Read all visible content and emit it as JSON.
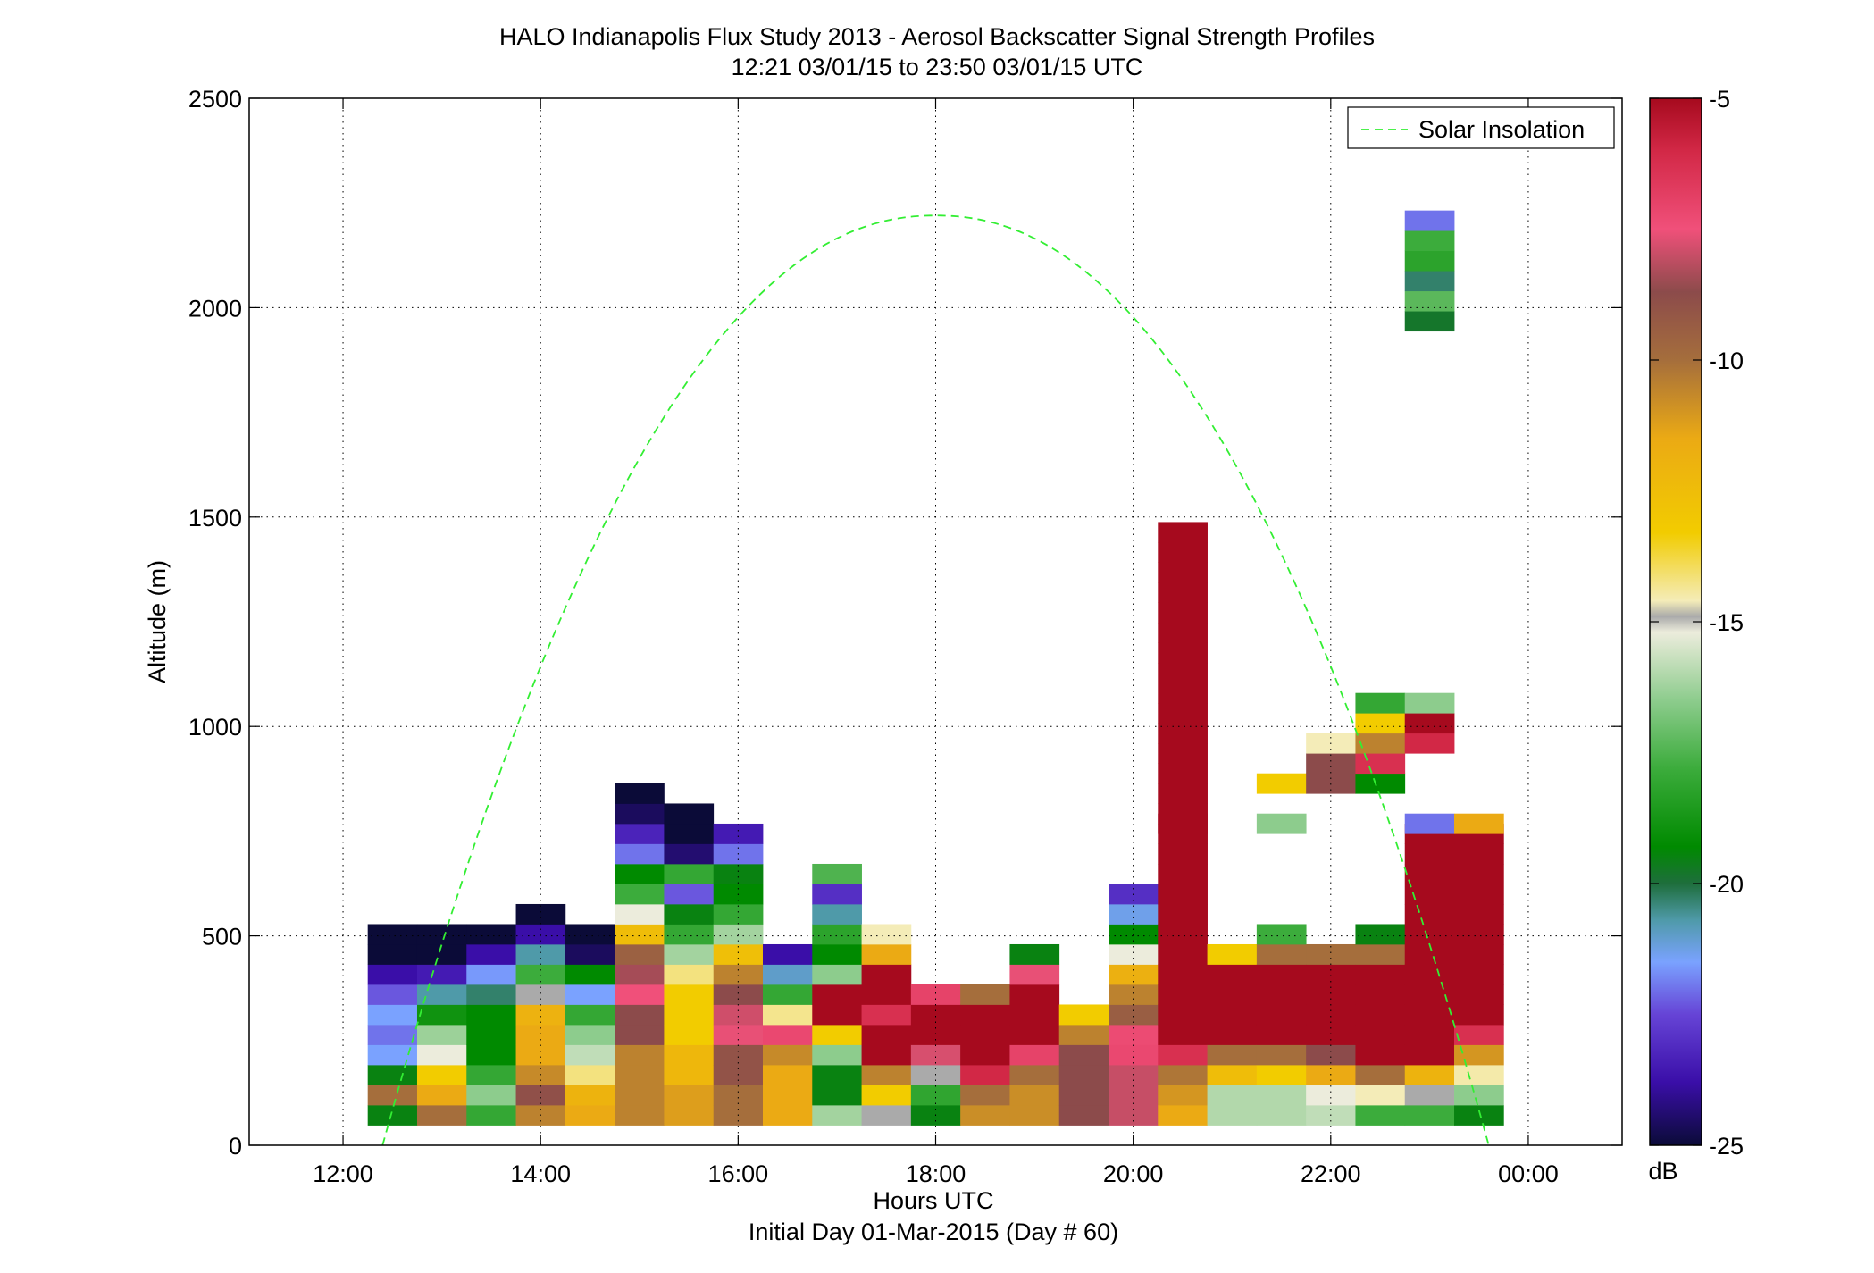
{
  "chart_data": {
    "type": "heatmap",
    "title": "HALO Indianapolis Flux Study 2013 - Aerosol Backscatter Signal Strength Profiles",
    "subtitle": "12:21 03/01/15 to 23:50 03/01/15  UTC",
    "xlabel": "Hours UTC",
    "xlabel2": "Initial Day 01-Mar-2015 (Day # 60)",
    "ylabel": "Altitude (m)",
    "xlim": [
      11.05,
      24.95
    ],
    "ylim": [
      0,
      2500
    ],
    "xticks": [
      12,
      14,
      16,
      18,
      20,
      22,
      24
    ],
    "xtick_labels": [
      "12:00",
      "14:00",
      "16:00",
      "18:00",
      "20:00",
      "22:00",
      "00:00"
    ],
    "yticks": [
      0,
      500,
      1000,
      1500,
      2000,
      2500
    ],
    "ytick_labels": [
      "0",
      "500",
      "1000",
      "1500",
      "2000",
      "2500"
    ],
    "grid": true,
    "legend": {
      "position": "top-right",
      "entries": [
        {
          "name": "Solar Insolation",
          "style": "dashed",
          "color": "#33ee33"
        }
      ]
    },
    "colorbar": {
      "label": "dB",
      "range": [
        -25,
        -5
      ],
      "ticks": [
        -5,
        -10,
        -15,
        -20,
        -25
      ],
      "tick_labels": [
        "-5",
        "-10",
        "-15",
        "-20",
        "-25"
      ],
      "stops": [
        {
          "v": -25,
          "color": "#0b0b38"
        },
        {
          "v": -23.8,
          "color": "#3a0ea8"
        },
        {
          "v": -22.5,
          "color": "#6644d6"
        },
        {
          "v": -21.5,
          "color": "#7aa2ff"
        },
        {
          "v": -20.7,
          "color": "#4f9aa9"
        },
        {
          "v": -20.0,
          "color": "#1e6e3c"
        },
        {
          "v": -19.3,
          "color": "#008a00"
        },
        {
          "v": -17.8,
          "color": "#3cac3c"
        },
        {
          "v": -16.5,
          "color": "#8dcc8d"
        },
        {
          "v": -15.2,
          "color": "#ececdc"
        },
        {
          "v": -14.9,
          "color": "#aaaaaa"
        },
        {
          "v": -14.6,
          "color": "#f4ecb8"
        },
        {
          "v": -13.3,
          "color": "#f2cc00"
        },
        {
          "v": -11.5,
          "color": "#ebaa14"
        },
        {
          "v": -10.0,
          "color": "#a56e3c"
        },
        {
          "v": -8.7,
          "color": "#8c4b4b"
        },
        {
          "v": -7.5,
          "color": "#f0507a"
        },
        {
          "v": -6.0,
          "color": "#d22846"
        },
        {
          "v": -5,
          "color": "#a60a1e"
        }
      ]
    },
    "bin_width_hours": 0.5,
    "bin_height_m": 48,
    "solar_insolation": {
      "start": 12.4,
      "peak_x": 18.0,
      "peak_y": 2220,
      "end": 23.6
    },
    "cells": [
      {
        "x": 12.5,
        "y0": 48,
        "v": [
          -19.5,
          -10.0,
          -19.5,
          -21.5,
          -22.0,
          -21.5,
          -22.3,
          -23.8,
          -25,
          -25
        ]
      },
      {
        "x": 13.0,
        "y0": 48,
        "v": [
          -10.0,
          -11.5,
          -13.3,
          -15.2,
          -16.3,
          -18.9,
          -20.7,
          -23.5,
          -25,
          -25
        ]
      },
      {
        "x": 13.5,
        "y0": 48,
        "v": [
          -18.0,
          -16.5,
          -18.0,
          -19.3,
          -19.3,
          -19.3,
          -20.3,
          -21.6,
          -23.8,
          -25
        ]
      },
      {
        "x": 14.0,
        "y0": 48,
        "v": [
          -10.5,
          -8.9,
          -10.7,
          -11.5,
          -11.5,
          -11.9,
          -14.9,
          -17.8,
          -20.7,
          -23.8,
          -25
        ]
      },
      {
        "x": 14.5,
        "y0": 48,
        "v": [
          -11.5,
          -12.0,
          -14.2,
          -15.8,
          -16.5,
          -18.0,
          -21.5,
          -19.3,
          -24.6,
          -25
        ]
      },
      {
        "x": 15.0,
        "y0": 48,
        "v": [
          -10.5,
          -10.5,
          -10.5,
          -10.5,
          -8.7,
          -8.7,
          -7.5,
          -8.4,
          -9.5,
          -12.5,
          -15.2,
          -17.8,
          -19.3,
          -22.0,
          -23.3,
          -24.6,
          -25
        ]
      },
      {
        "x": 15.5,
        "y0": 48,
        "v": [
          -11.2,
          -11.2,
          -12.2,
          -12.2,
          -13.3,
          -13.3,
          -13.3,
          -14.2,
          -16.2,
          -18.0,
          -19.5,
          -22.3,
          -18.0,
          -24.4,
          -25,
          -25
        ]
      },
      {
        "x": 16.0,
        "y0": 48,
        "v": [
          -10.0,
          -10.0,
          -9.0,
          -9.0,
          -7.6,
          -7.9,
          -8.7,
          -10.5,
          -12.6,
          -16.2,
          -18.0,
          -19.3,
          -19.5,
          -22.0,
          -23.5
        ]
      },
      {
        "x": 16.5,
        "y0": 48,
        "v": [
          -11.5,
          -11.5,
          -11.5,
          -10.7,
          -7.2,
          -14.3,
          -18.0,
          -21.0,
          -23.8
        ]
      },
      {
        "x": 17.0,
        "y0": 48,
        "v": [
          -16.2,
          -19.5,
          -19.5,
          -16.5,
          -13.3,
          -5,
          -5,
          -16.5,
          -19.3,
          -18.2,
          -20.7,
          -23.0,
          -17.5
        ]
      },
      {
        "x": 17.5,
        "y0": 48,
        "v": [
          -14.9,
          -13.3,
          -10.5,
          -5,
          -5,
          -6.3,
          -5,
          -5,
          -11.5,
          -14.6
        ]
      },
      {
        "x": 18.0,
        "y0": 48,
        "v": [
          -19.5,
          -18.1,
          -14.9,
          -7.8,
          -5,
          -5,
          -7.0
        ]
      },
      {
        "x": 18.5,
        "y0": 48,
        "v": [
          -10.8,
          -10.0,
          -6.0,
          -5,
          -5,
          -5,
          -10.0
        ]
      },
      {
        "x": 19.0,
        "y0": 48,
        "v": [
          -10.8,
          -10.8,
          -10.0,
          -7.0,
          -5,
          -5,
          -5,
          -7.6,
          -19.5
        ]
      },
      {
        "x": 19.5,
        "y0": 48,
        "v": [
          -8.7,
          -8.7,
          -8.7,
          -8.7,
          -10.5,
          -13.3
        ]
      },
      {
        "x": 20.0,
        "y0": 48,
        "v": [
          -8.0,
          -8.0,
          -8.0,
          -7.2,
          -7.3,
          -9.4,
          -10.5,
          -11.8,
          -15.2,
          -19.3,
          -21.3,
          -23.0
        ]
      },
      {
        "x": 20.5,
        "y0": 48,
        "v": [
          -11.5,
          -11.0,
          -10.2,
          -6.3,
          -5,
          -5,
          -5,
          -5,
          -5,
          -5,
          -5,
          -5,
          -5,
          -5,
          -5,
          -5,
          -5,
          -5,
          -5,
          -5,
          -5,
          -5,
          -5,
          -5,
          -5,
          -5,
          -5,
          -5,
          -5,
          -5
        ]
      },
      {
        "x": 21.0,
        "y0": 48,
        "v": [
          -16.0,
          -16.0,
          -12.5,
          -10.0,
          -5,
          -5,
          -5,
          -5,
          -13.3
        ]
      },
      {
        "x": 21.5,
        "y0": 48,
        "v": [
          -16.0,
          -16.0,
          -13.3,
          -10.0,
          -5,
          -5,
          -5,
          -5,
          -10.0,
          -17.8,
          null,
          null,
          null,
          null,
          null,
          null,
          null,
          null,
          null,
          null,
          null,
          null,
          null,
          null,
          null,
          null,
          null,
          null,
          null,
          null
        ]
      },
      {
        "x": 22.0,
        "y0": 48,
        "v": [
          -15.8,
          -15.2,
          -11.5,
          -8.7,
          -5,
          -5,
          -5,
          -5,
          -10.0
        ]
      },
      {
        "x": 22.5,
        "y0": 48,
        "v": [
          -17.8,
          -14.6,
          -10.0,
          -5,
          -5,
          -5,
          -5,
          -5,
          -10.0,
          -19.5
        ]
      },
      {
        "x": 23.0,
        "y0": 48,
        "v": [
          -17.8,
          -14.9,
          -12.0,
          -5,
          -5,
          -5,
          -5,
          -5,
          -5,
          -5,
          -5,
          -5,
          -5,
          -5,
          -5
        ]
      },
      {
        "x": 23.5,
        "y0": 48,
        "v": [
          -19.5,
          -16.5,
          -14.5,
          -11.0,
          -6.3,
          -5,
          -5,
          -5,
          -5,
          -5,
          -5,
          -5,
          -5,
          -5,
          -5
        ]
      }
    ],
    "extra_cells": [
      {
        "x": 20.5,
        "y": 744,
        "v": -5
      },
      {
        "x": 21.5,
        "y": 744,
        "v": -16.5
      },
      {
        "x": 21.5,
        "y": 840,
        "v": -13.3
      },
      {
        "x": 22.0,
        "y": 840,
        "v": -8.7
      },
      {
        "x": 22.0,
        "y": 888,
        "v": -8.7
      },
      {
        "x": 22.0,
        "y": 936,
        "v": -14.6
      },
      {
        "x": 22.5,
        "y": 840,
        "v": -19.3
      },
      {
        "x": 22.5,
        "y": 888,
        "v": -6.3
      },
      {
        "x": 22.5,
        "y": 936,
        "v": -10.5
      },
      {
        "x": 22.5,
        "y": 984,
        "v": -13.3
      },
      {
        "x": 22.5,
        "y": 1032,
        "v": -18.0
      },
      {
        "x": 23.0,
        "y": 744,
        "v": -22.0
      },
      {
        "x": 23.0,
        "y": 936,
        "v": -6.0
      },
      {
        "x": 23.0,
        "y": 984,
        "v": -5
      },
      {
        "x": 23.0,
        "y": 1032,
        "v": -16.5
      },
      {
        "x": 23.5,
        "y": 744,
        "v": -11.5
      },
      {
        "x": 23.0,
        "y": 1944,
        "v": -19.8
      },
      {
        "x": 23.0,
        "y": 1992,
        "v": -17.3
      },
      {
        "x": 23.0,
        "y": 2040,
        "v": -20.3
      },
      {
        "x": 23.0,
        "y": 2088,
        "v": -18.2
      },
      {
        "x": 23.0,
        "y": 2136,
        "v": -17.8
      },
      {
        "x": 23.0,
        "y": 2184,
        "v": -22.0
      }
    ]
  }
}
